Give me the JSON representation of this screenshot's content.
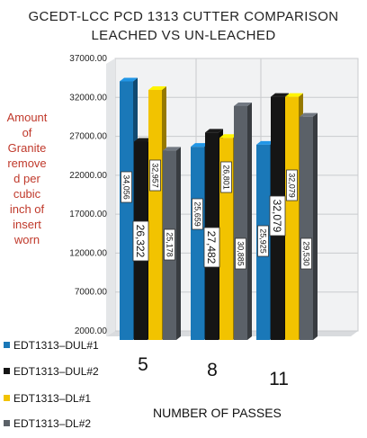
{
  "titles": {
    "line1": "GCEDT-LCC PCD 1313 CUTTER COMPARISON",
    "line2": "LEACHED VS UN-LEACHED"
  },
  "ylabel_lines": [
    "Amount",
    "of",
    "Granite",
    "remove",
    "d per",
    "cubic",
    "inch of",
    "insert",
    "worn"
  ],
  "chart_data": {
    "type": "bar",
    "title": "GCEDT-LCC PCD 1313 CUTTER COMPARISON LEACHED VS UN-LEACHED",
    "xlabel": "NUMBER OF PASSES",
    "ylabel": "Amount of Granite removed per cubic inch of insert worn",
    "categories": [
      "5",
      "8",
      "11"
    ],
    "ylim": [
      2000,
      37000
    ],
    "yticks": [
      "2000.00",
      "7000.00",
      "12000.00",
      "17000.00",
      "22000.00",
      "27000.00",
      "32000.00",
      "37000.00"
    ],
    "legend_position": "bottom-left",
    "series": [
      {
        "name": "EDT1313–DUL#1",
        "color": "#1a78b8",
        "values": [
          34056,
          25659,
          25925
        ],
        "labels": [
          "34,056",
          "25,659",
          "25,925"
        ]
      },
      {
        "name": "EDT1313–DUL#2",
        "color": "#151515",
        "values": [
          26322,
          27482,
          32079
        ],
        "labels": [
          "26,322",
          "27,482",
          "32,079"
        ]
      },
      {
        "name": "EDT1313–DL#1",
        "color": "#f2c300",
        "values": [
          32957,
          26801,
          32079
        ],
        "labels": [
          "32,957",
          "26,801",
          "32,079"
        ]
      },
      {
        "name": "EDT1313–DL#2",
        "color": "#5b6168",
        "values": [
          25178,
          30885,
          29530
        ],
        "labels": [
          "25,178",
          "30,885",
          "29,530"
        ]
      }
    ]
  }
}
